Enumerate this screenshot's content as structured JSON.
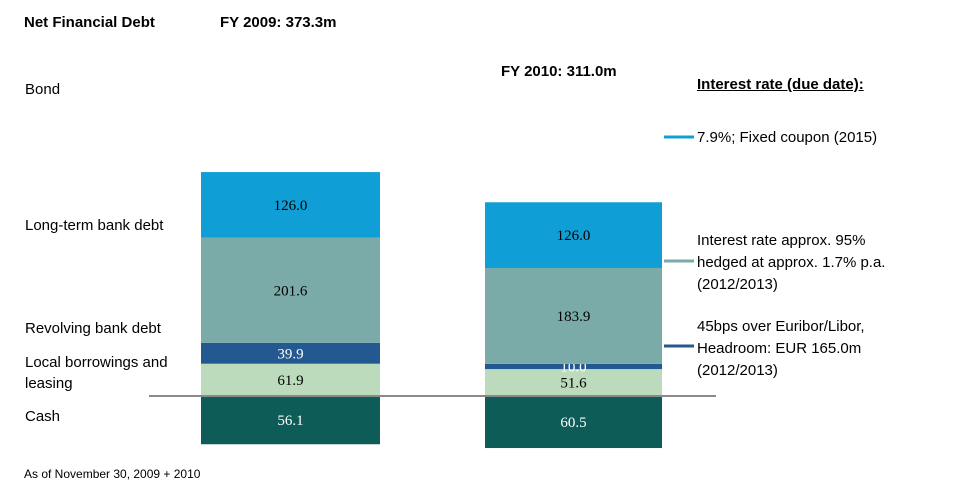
{
  "chart_data": {
    "type": "bar",
    "subtype": "stacked",
    "title": "Net Financial Debt",
    "categories": [
      "FY 2009: 373.3m",
      "FY 2010: 311.0m"
    ],
    "series": [
      {
        "name": "Bond",
        "values": [
          126.0,
          126.0
        ],
        "color": "#0f9fd6"
      },
      {
        "name": "Long-term bank debt",
        "values": [
          201.6,
          183.9
        ],
        "color": "#7aaba9"
      },
      {
        "name": "Revolving bank debt",
        "values": [
          39.9,
          10.0
        ],
        "color": "#245891"
      },
      {
        "name": "Local borrowings and leasing",
        "values": [
          61.9,
          51.6
        ],
        "color": "#bcdbbc"
      },
      {
        "name": "Cash",
        "values": [
          56.1,
          60.5
        ],
        "color": "#0e5c58",
        "below_axis": true
      }
    ],
    "value_labels": [
      [
        "126.0",
        "201.6",
        "39.9",
        "61.9",
        "56.1"
      ],
      [
        "126.0",
        "183.9",
        "10.0",
        "51.6",
        "60.5"
      ]
    ],
    "grid": false,
    "legend": "none"
  },
  "texts": {
    "title": "Net Financial Debt",
    "fy2009": "FY 2009: 373.3m",
    "fy2010": "FY 2010: 311.0m",
    "row_bond": "Bond",
    "row_ltbd": "Long-term bank debt",
    "row_rbd": "Revolving bank debt",
    "row_local": "Local borrowings and leasing",
    "row_cash": "Cash",
    "interest_header": "Interest rate (due date):",
    "note_bond": "7.9%; Fixed coupon (2015)",
    "note_lt_1": "Interest rate approx. 95%",
    "note_lt_2": "hedged at approx. 1.7% p.a.",
    "note_lt_3": "(2012/2013)",
    "note_rv_1": "45bps over Euribor/Libor,",
    "note_rv_2": "Headroom: EUR 165.0m",
    "note_rv_3": "(2012/2013)",
    "footnote": "As of November 30, 2009 + 2010"
  }
}
